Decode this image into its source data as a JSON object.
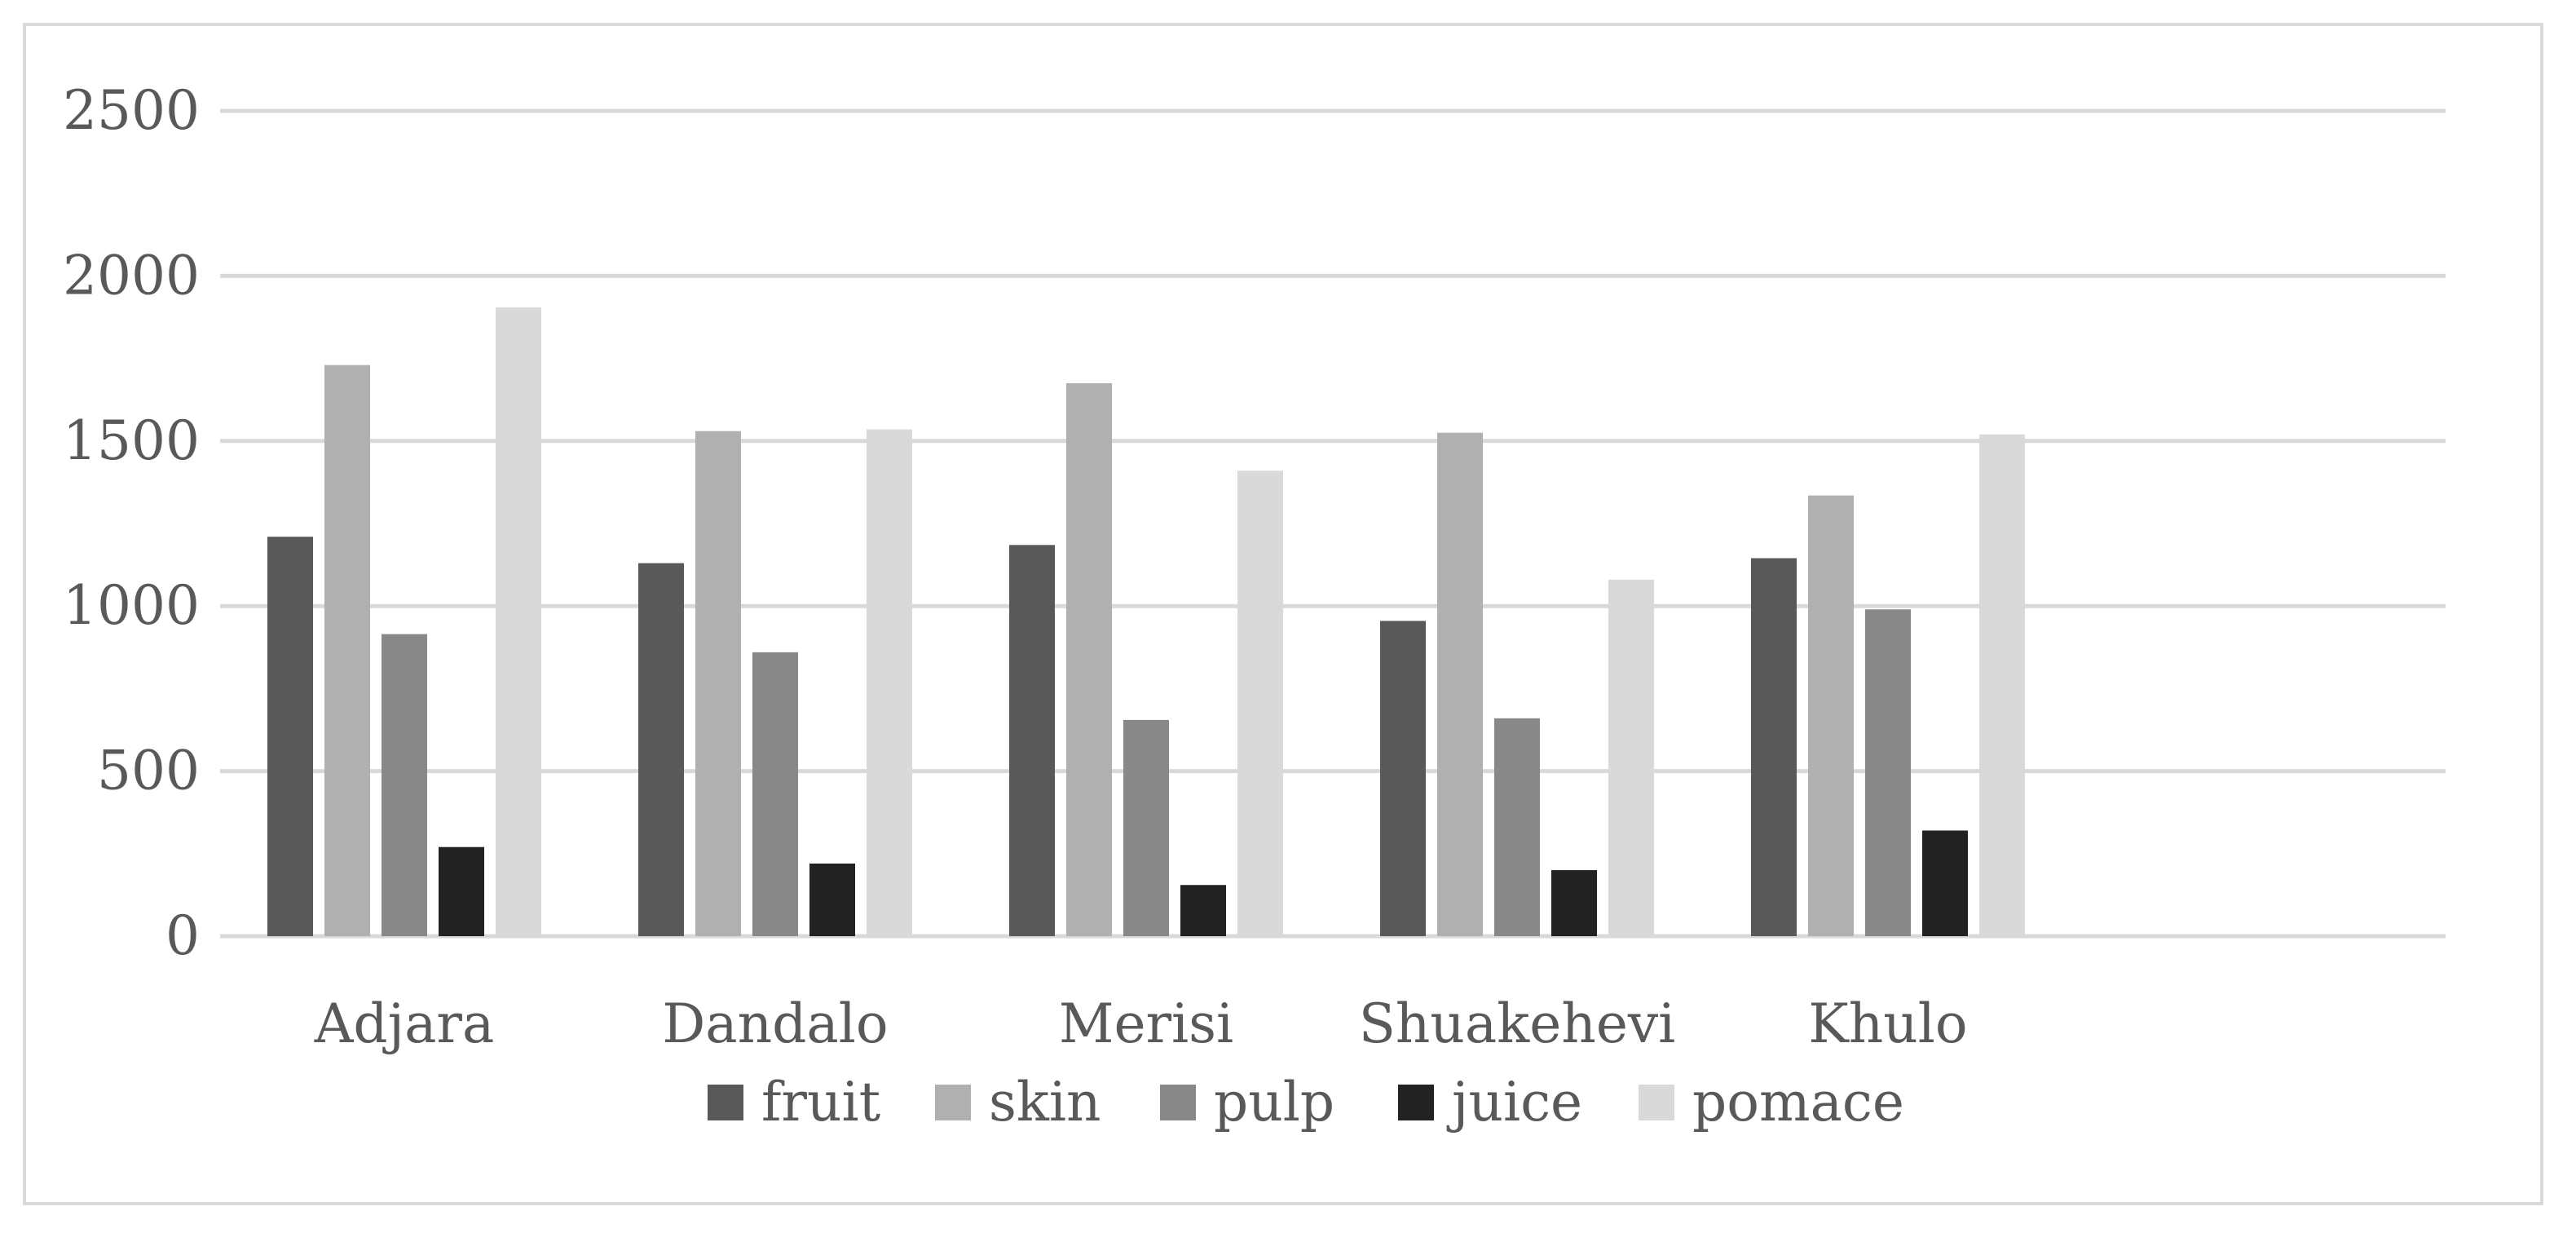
{
  "chart_data": {
    "type": "bar",
    "title": "",
    "xlabel": "",
    "ylabel": "",
    "ylim": [
      0,
      2500
    ],
    "yticks": [
      0,
      500,
      1000,
      1500,
      2000,
      2500
    ],
    "grid": true,
    "legend_position": "bottom",
    "categories": [
      "Adjara",
      "Dandalo",
      "Merisi",
      "Shuakehevi",
      "Khulo"
    ],
    "series": [
      {
        "name": "fruit",
        "color": "#595959",
        "values": [
          1210,
          1130,
          1185,
          955,
          1145
        ]
      },
      {
        "name": "skin",
        "color": "#b0b0b0",
        "values": [
          1730,
          1530,
          1675,
          1525,
          1335
        ]
      },
      {
        "name": "pulp",
        "color": "#888888",
        "values": [
          915,
          860,
          655,
          660,
          990
        ]
      },
      {
        "name": "juice",
        "color": "#222222",
        "values": [
          270,
          220,
          155,
          200,
          320
        ]
      },
      {
        "name": "pomace",
        "color": "#d9d9d9",
        "values": [
          1905,
          1535,
          1410,
          1080,
          1520
        ]
      }
    ]
  }
}
